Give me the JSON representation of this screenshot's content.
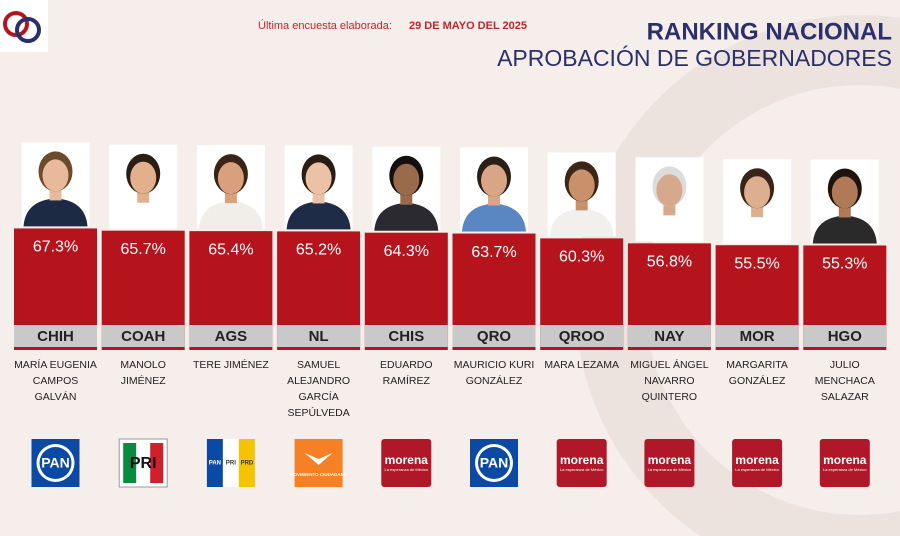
{
  "chart_data": {
    "type": "bar",
    "title": "RANKING NACIONAL",
    "subtitle": "APROBACIÓN DE GOBERNADORES",
    "note": "Última encuesta elaborada:",
    "date": "29 DE MAYO DEL 2025",
    "categories": [
      "CHIH",
      "COAH",
      "AGS",
      "NL",
      "CHIS",
      "QRO",
      "QROO",
      "NAY",
      "MOR",
      "HGO"
    ],
    "values": [
      67.3,
      65.7,
      65.4,
      65.2,
      64.3,
      63.7,
      60.3,
      56.8,
      55.5,
      55.3
    ],
    "value_labels": [
      "67.3%",
      "65.7%",
      "65.4%",
      "65.2%",
      "64.3%",
      "63.7%",
      "60.3%",
      "56.8%",
      "55.5%",
      "55.3%"
    ],
    "names": [
      "MARÍA EUGENIA CAMPOS GALVÁN",
      "MANOLO JIMÉNEZ",
      "TERE JIMÉNEZ",
      "SAMUEL ALEJANDRO GARCÍA SEPÚLVEDA",
      "EDUARDO RAMÍREZ",
      "MAURICIO KURI GONZÁLEZ",
      "MARA LEZAMA",
      "MIGUEL ÁNGEL NAVARRO QUINTERO",
      "MARGARITA GONZÁLEZ",
      "JULIO MENCHACA SALAZAR"
    ],
    "parties": [
      [
        "PAN"
      ],
      [
        "PRI"
      ],
      [
        "PAN",
        "PRI",
        "PRD"
      ],
      [
        "MOVIMIENTO CIUDADANO"
      ],
      [
        "morena"
      ],
      [
        "PAN"
      ],
      [
        "morena"
      ],
      [
        "morena"
      ],
      [
        "morena"
      ],
      [
        "morena"
      ]
    ],
    "morena_slogan": "La esperanza de México",
    "color": "#b5141d",
    "ylim": [
      0,
      100
    ]
  }
}
